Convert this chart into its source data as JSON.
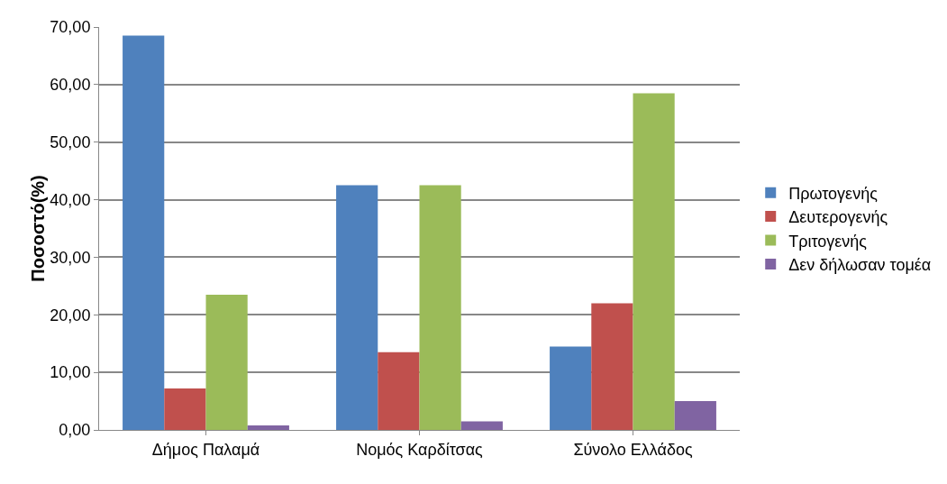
{
  "chart_data": {
    "type": "bar",
    "ylabel": "Ποσοστό(%)",
    "categories": [
      "Δήμος Παλαμά",
      "Νομός Καρδίτσας",
      "Σύνολο Ελλάδος"
    ],
    "series": [
      {
        "name": "Πρωτογενής",
        "color": "#4f81bd",
        "values": [
          68.5,
          42.5,
          14.5
        ]
      },
      {
        "name": "Δευτερογενής",
        "color": "#c0504d",
        "values": [
          7.2,
          13.5,
          22
        ]
      },
      {
        "name": "Τριτογενής",
        "color": "#9bbb59",
        "values": [
          23.5,
          42.5,
          58.5
        ]
      },
      {
        "name": "Δεν δήλωσαν τομέα",
        "color": "#8064a2",
        "values": [
          0.8,
          1.5,
          5
        ]
      }
    ],
    "ylim": [
      0,
      70
    ],
    "yticks": [
      {
        "value": 0,
        "label": "0,00"
      },
      {
        "value": 10,
        "label": "10,00"
      },
      {
        "value": 20,
        "label": "20,00"
      },
      {
        "value": 30,
        "label": "30,00"
      },
      {
        "value": 40,
        "label": "40,00"
      },
      {
        "value": 50,
        "label": "50,00"
      },
      {
        "value": 60,
        "label": "60,00"
      },
      {
        "value": 70,
        "label": "70,00"
      }
    ],
    "grid": "y",
    "legend": "right"
  }
}
